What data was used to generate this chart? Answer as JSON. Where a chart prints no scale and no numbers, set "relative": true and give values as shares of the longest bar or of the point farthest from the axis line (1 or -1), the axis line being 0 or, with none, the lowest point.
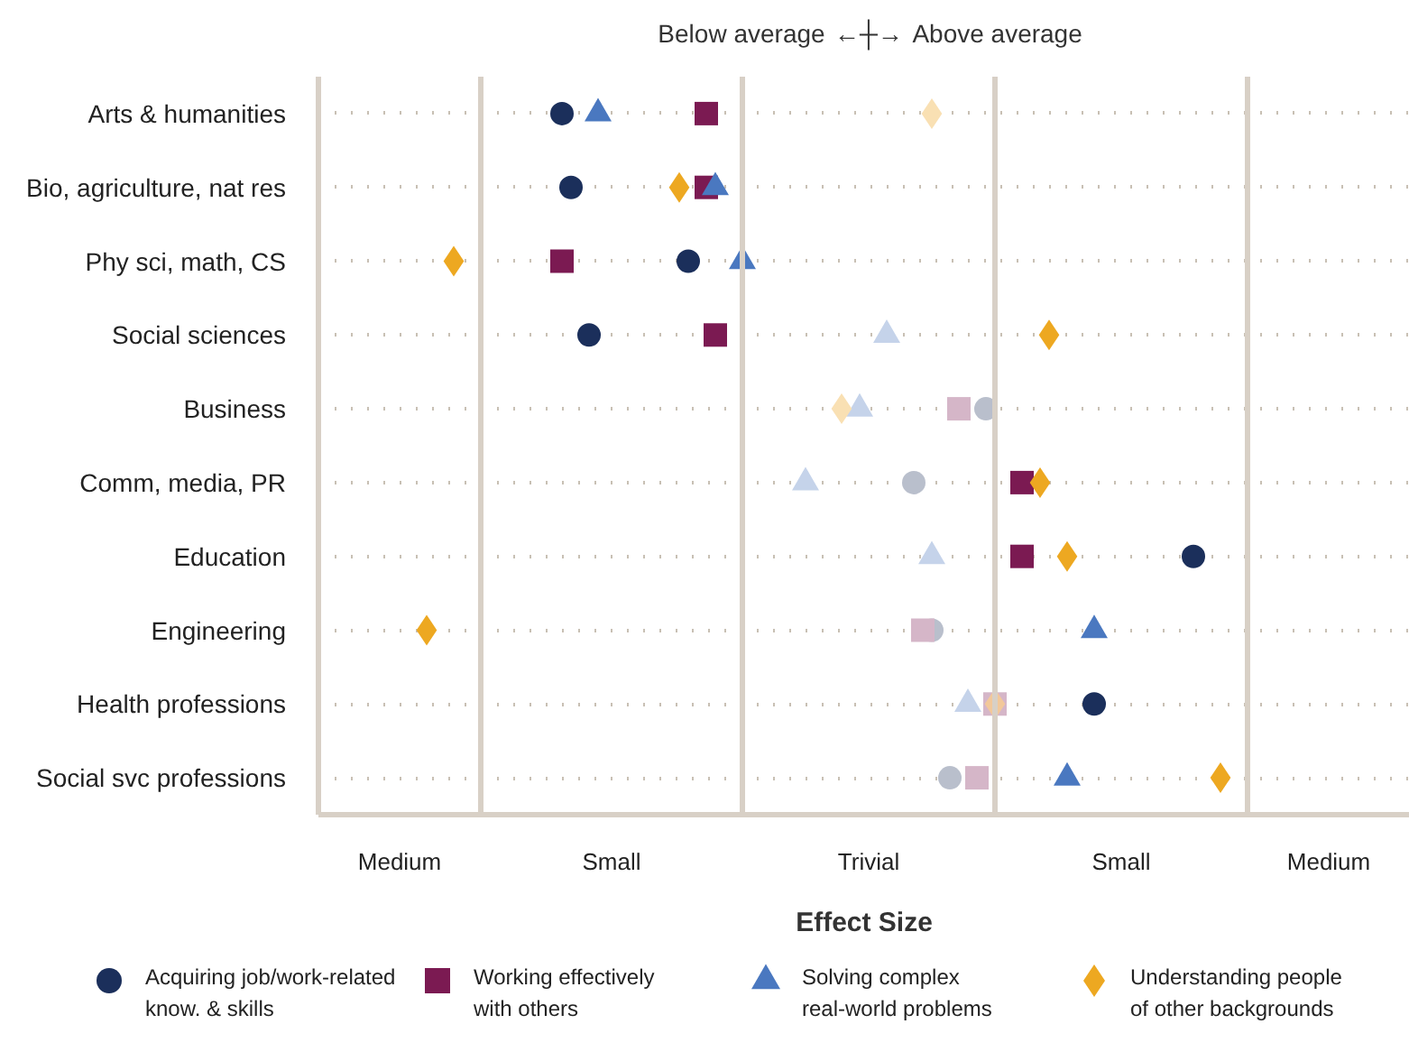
{
  "chart_data": {
    "type": "scatter",
    "orientation": "horizontal",
    "relative": true,
    "xlabel": "Effect Size",
    "categories": [
      "Arts & humanities",
      "Bio, agriculture, nat res",
      "Phy sci, math, CS",
      "Social sciences",
      "Business",
      "Comm, media, PR",
      "Education",
      "Engineering",
      "Health professions",
      "Social svc professions"
    ],
    "series": [
      {
        "name": "Acquiring job/work-related know. & skills",
        "marker": "circle",
        "color": "#1b2f5b",
        "values": [
          0.27,
          0.28,
          0.41,
          0.3,
          0.74,
          0.66,
          0.97,
          0.68,
          0.86,
          0.7
        ],
        "colors": [
          "#1b2f5b",
          "#1b2f5b",
          "#1b2f5b",
          "#1b2f5b",
          "#b9bfcc",
          "#b9bfcc",
          "#1b2f5b",
          "#b9bfcc",
          "#1b2f5b",
          "#b9bfcc"
        ]
      },
      {
        "name": "Working effectively with others",
        "marker": "square",
        "color": "#7b1a52",
        "values": [
          0.43,
          0.43,
          0.27,
          0.44,
          0.71,
          0.78,
          0.78,
          0.67,
          0.75,
          0.73
        ],
        "colors": [
          "#7b1a52",
          "#7b1a52",
          "#7b1a52",
          "#7b1a52",
          "#d5b6c8",
          "#7b1a52",
          "#7b1a52",
          "#d5b6c8",
          "#d5b6c8",
          "#d5b6c8"
        ]
      },
      {
        "name": "Solving complex real-world problems",
        "marker": "triangle",
        "color": "#4a78c0",
        "values": [
          0.31,
          0.44,
          0.47,
          0.63,
          0.6,
          0.54,
          0.68,
          0.86,
          0.72,
          0.83
        ],
        "colors": [
          "#4a78c0",
          "#4a78c0",
          "#4a78c0",
          "#c5d3ea",
          "#c5d3ea",
          "#c5d3ea",
          "#c5d3ea",
          "#4a78c0",
          "#c5d3ea",
          "#4a78c0"
        ]
      },
      {
        "name": "Understanding people of other backgrounds",
        "marker": "diamond",
        "color": "#eda821",
        "values": [
          0.68,
          0.4,
          0.15,
          0.81,
          0.58,
          0.8,
          0.83,
          0.12,
          0.75,
          1
        ],
        "colors": [
          "#f9e0b3",
          "#eda821",
          "#eda821",
          "#eda821",
          "#f9e0b3",
          "#eda821",
          "#eda821",
          "#eda821",
          "#f2c89a",
          "#eda821"
        ]
      }
    ],
    "ref_lines": [
      {
        "axis": "x",
        "value": 0.18,
        "color": "#d8d0c6"
      },
      {
        "axis": "x",
        "value": 0.47,
        "color": "#d8d0c6"
      },
      {
        "axis": "x",
        "value": 0.75,
        "color": "#d8d0c6"
      },
      {
        "axis": "x",
        "value": 1.03,
        "color": "#d8d0c6"
      }
    ],
    "annotations": [
      "Below average",
      "←┼→",
      "Above average",
      "Medium",
      "Small",
      "Trivial",
      "Small",
      "Medium"
    ],
    "grid": "y",
    "legend": "bottom"
  }
}
